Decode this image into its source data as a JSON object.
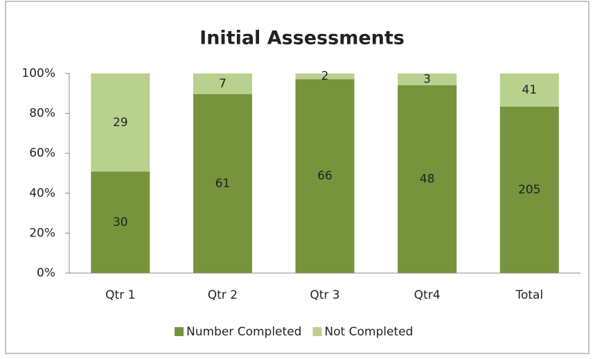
{
  "chart_data": {
    "type": "bar",
    "stacked": "percent",
    "title": "Initial Assessments",
    "categories": [
      "Qtr 1",
      "Qtr 2",
      "Qtr 3",
      "Qtr4",
      "Total"
    ],
    "series": [
      {
        "name": "Number Completed",
        "color": "#77933c",
        "values": [
          30,
          61,
          66,
          48,
          205
        ]
      },
      {
        "name": "Not Completed",
        "color": "#b9d18f",
        "values": [
          29,
          7,
          2,
          3,
          41
        ]
      }
    ],
    "ylim": [
      0,
      100
    ],
    "yticks": [
      {
        "value": 0,
        "label": "0%"
      },
      {
        "value": 20,
        "label": "20%"
      },
      {
        "value": 40,
        "label": "40%"
      },
      {
        "value": 60,
        "label": "60%"
      },
      {
        "value": 80,
        "label": "80%"
      },
      {
        "value": 100,
        "label": "100%"
      }
    ],
    "grid": false,
    "legend": "bottom"
  }
}
